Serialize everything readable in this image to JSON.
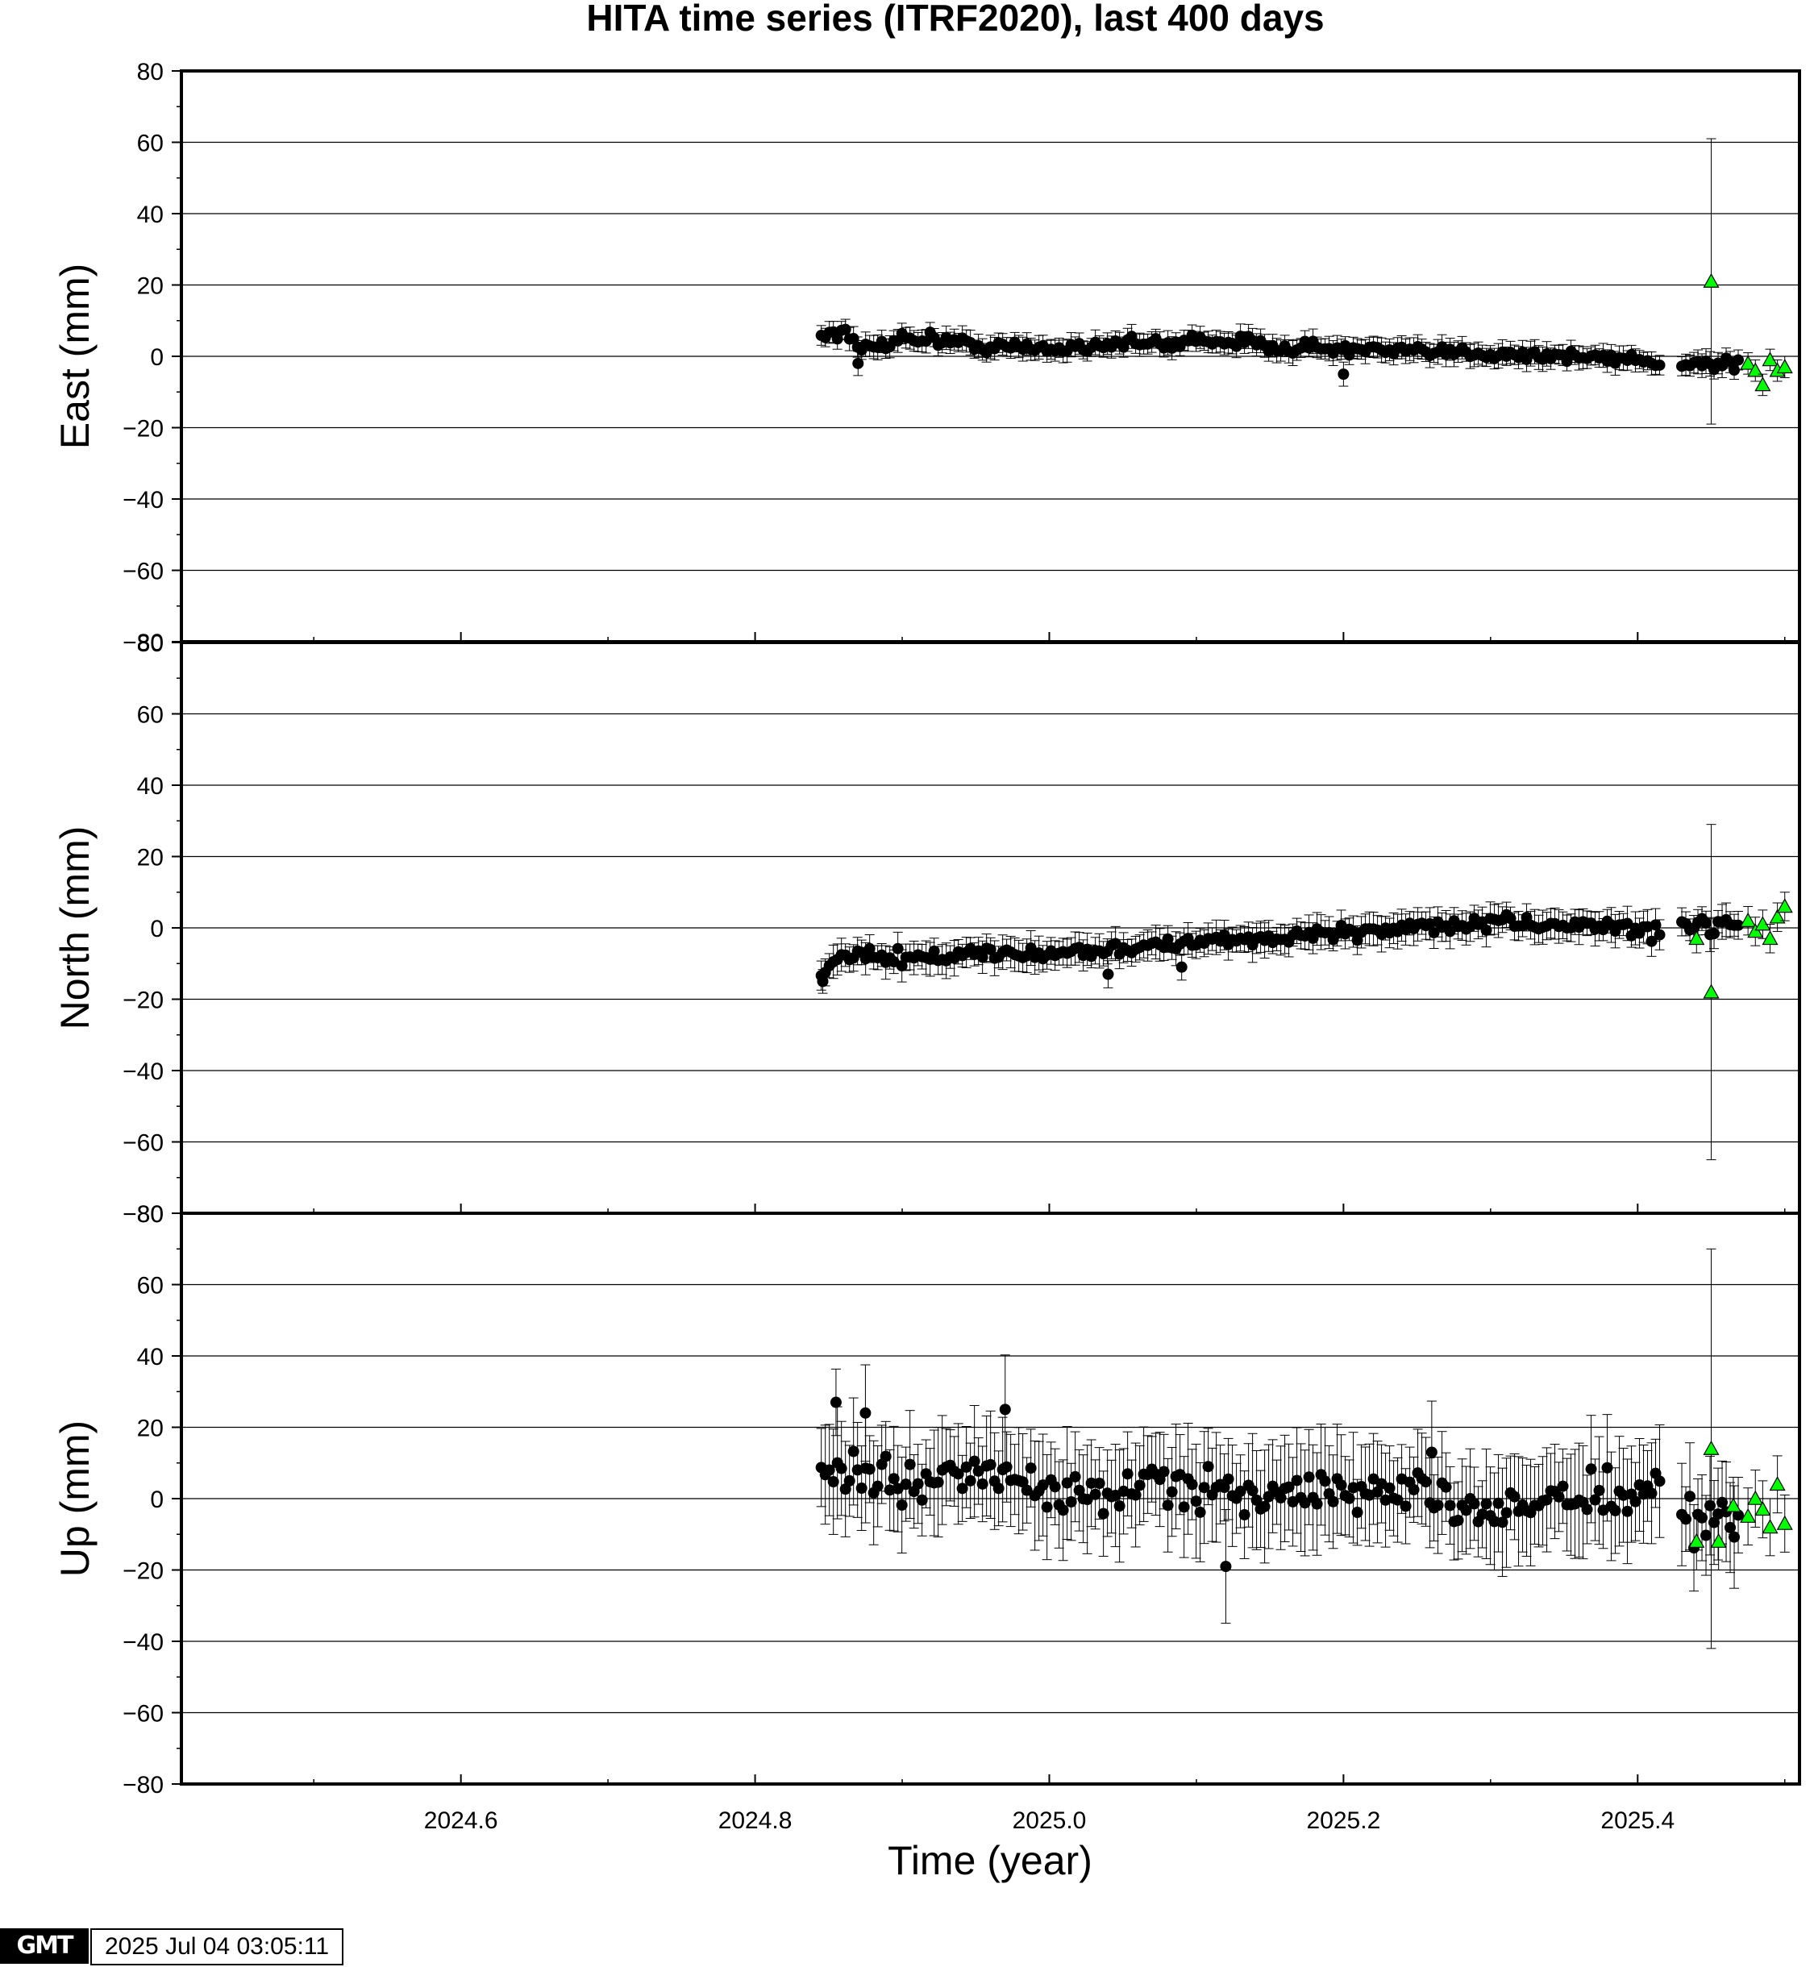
{
  "chart_data": {
    "type": "scatter",
    "title": "HITA time series (ITRF2020), last 400 days",
    "xlabel": "Time (year)",
    "xlim": [
      2024.41,
      2025.51
    ],
    "x_ticks": [
      2024.6,
      2024.8,
      2025.0,
      2025.2,
      2025.4
    ],
    "x_tick_labels": [
      "2024.6",
      "2024.8",
      "2025.0",
      "2025.2",
      "2025.4"
    ],
    "y_ticks": [
      -80,
      -60,
      -40,
      -20,
      0,
      20,
      40,
      60,
      80
    ],
    "y_tick_labels": [
      "−80",
      "−60",
      "−40",
      "−20",
      "0",
      "20",
      "40",
      "60",
      "80"
    ],
    "grid": true,
    "colors": {
      "final": "#000000",
      "rapid": "#00ff00",
      "grid": "#000000"
    },
    "panels": [
      {
        "name": "East",
        "ylabel": "East (mm)",
        "ylim": [
          -80,
          80
        ],
        "final": {
          "x_start": 2024.845,
          "x_step": 0.00274,
          "anchors": [
            [
              2024.845,
              6
            ],
            [
              2024.86,
              7
            ],
            [
              2024.87,
              2
            ],
            [
              2024.9,
              5
            ],
            [
              2024.92,
              5
            ],
            [
              2024.95,
              3
            ],
            [
              2025.0,
              2
            ],
            [
              2025.05,
              4
            ],
            [
              2025.08,
              3
            ],
            [
              2025.1,
              5
            ],
            [
              2025.15,
              3
            ],
            [
              2025.2,
              2
            ],
            [
              2025.25,
              1
            ],
            [
              2025.3,
              1
            ],
            [
              2025.35,
              0
            ],
            [
              2025.4,
              -1
            ],
            [
              2025.415,
              -2
            ]
          ],
          "outliers": [
            [
              2024.87,
              -2
            ],
            [
              2025.2,
              -5
            ]
          ],
          "noise_sd": 1.5,
          "err_min": 2.5,
          "err_max": 3.5,
          "gap_x_start": 2025.43,
          "gap_x_end": 2025.47,
          "gap_y": -2
        },
        "rapid": {
          "x": [
            2025.45,
            2025.475,
            2025.48,
            2025.485,
            2025.49,
            2025.495,
            2025.5
          ],
          "y": [
            21,
            -2,
            -4,
            -8,
            -1,
            -4,
            -3
          ],
          "err": [
            40,
            3,
            3,
            3,
            3,
            3,
            3
          ]
        }
      },
      {
        "name": "North",
        "ylabel": "North (mm)",
        "ylim": [
          -80,
          80
        ],
        "final": {
          "x_start": 2024.845,
          "x_step": 0.00274,
          "anchors": [
            [
              2024.845,
              -13
            ],
            [
              2024.86,
              -8
            ],
            [
              2024.9,
              -9
            ],
            [
              2024.95,
              -7
            ],
            [
              2025.0,
              -7
            ],
            [
              2025.05,
              -6
            ],
            [
              2025.1,
              -4
            ],
            [
              2025.15,
              -3
            ],
            [
              2025.2,
              -1
            ],
            [
              2025.25,
              0
            ],
            [
              2025.3,
              1
            ],
            [
              2025.35,
              1
            ],
            [
              2025.4,
              0
            ],
            [
              2025.415,
              -2
            ]
          ],
          "outliers": [
            [
              2024.846,
              -15
            ],
            [
              2025.04,
              -13
            ],
            [
              2025.09,
              -11
            ]
          ],
          "noise_sd": 1.8,
          "err_min": 3.0,
          "err_max": 5.0,
          "gap_x_start": 2025.43,
          "gap_x_end": 2025.47,
          "gap_y": 1
        },
        "rapid": {
          "x": [
            2025.44,
            2025.45,
            2025.475,
            2025.48,
            2025.485,
            2025.49,
            2025.495,
            2025.5
          ],
          "y": [
            -3,
            -18,
            2,
            -1,
            1,
            -3,
            3,
            6
          ],
          "err": [
            4,
            47,
            4,
            4,
            4,
            4,
            4,
            4
          ]
        }
      },
      {
        "name": "Up",
        "ylabel": "Up (mm)",
        "ylim": [
          -80,
          80
        ],
        "final": {
          "x_start": 2024.845,
          "x_step": 0.00274,
          "anchors": [
            [
              2024.845,
              8
            ],
            [
              2024.9,
              4
            ],
            [
              2024.95,
              8
            ],
            [
              2025.0,
              2
            ],
            [
              2025.05,
              2
            ],
            [
              2025.1,
              4
            ],
            [
              2025.15,
              0
            ],
            [
              2025.2,
              2
            ],
            [
              2025.25,
              0
            ],
            [
              2025.3,
              -2
            ],
            [
              2025.35,
              0
            ],
            [
              2025.4,
              0
            ],
            [
              2025.415,
              2
            ]
          ],
          "outliers": [
            [
              2024.855,
              27
            ],
            [
              2024.875,
              24
            ],
            [
              2024.97,
              25
            ],
            [
              2025.12,
              -19
            ],
            [
              2025.26,
              13
            ]
          ],
          "noise_sd": 5.5,
          "err_min": 9,
          "err_max": 16,
          "gap_x_start": 2025.43,
          "gap_x_end": 2025.47,
          "gap_y": -7
        },
        "rapid": {
          "x": [
            2025.44,
            2025.45,
            2025.455,
            2025.465,
            2025.475,
            2025.48,
            2025.485,
            2025.49,
            2025.495,
            2025.5
          ],
          "y": [
            -12,
            14,
            -12,
            -2,
            -5,
            0,
            -3,
            -8,
            4,
            -7
          ],
          "err": [
            8,
            56,
            8,
            8,
            8,
            8,
            8,
            8,
            8,
            8
          ]
        }
      }
    ]
  },
  "footer": {
    "logo_text": "GMT",
    "timestamp": "2025 Jul 04 03:05:11"
  }
}
